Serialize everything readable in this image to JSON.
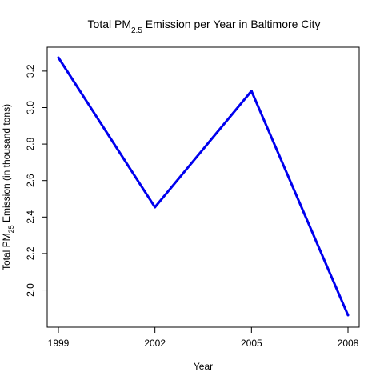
{
  "chart_data": {
    "type": "line",
    "title_prefix": "Total PM",
    "title_subscript": "2.5",
    "title_suffix": " Emission per Year in Baltimore City",
    "xlabel": "Year",
    "ylabel_prefix": "Total PM",
    "ylabel_subscript": "25",
    "ylabel_suffix": " Emission (in thousand tons)",
    "x": [
      1999,
      2002,
      2005,
      2008
    ],
    "x_tick_labels": [
      "1999",
      "2002",
      "2005",
      "2008"
    ],
    "y_ticks": [
      2.0,
      2.2,
      2.4,
      2.6,
      2.8,
      3.0,
      3.2
    ],
    "y_tick_labels": [
      "2.0",
      "2.2",
      "2.4",
      "2.6",
      "2.8",
      "3.0",
      "3.2"
    ],
    "xlim": [
      1999,
      2008
    ],
    "ylim": [
      1.862,
      3.274
    ],
    "grid": false,
    "series": [
      {
        "values": [
          3.274,
          2.454,
          3.091,
          1.862
        ],
        "color": "#0000ee"
      }
    ]
  }
}
